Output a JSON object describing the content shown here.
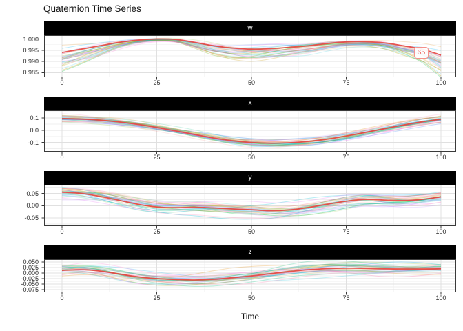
{
  "title": "Quaternion Time Series",
  "colors": {
    "highlight": "#e8453f",
    "annotation_border": "#f4918b",
    "annotation_text": "#ec5a52",
    "strip_bg": "#000000",
    "strip_text": "#ffffff",
    "grid_major": "#e0e0e0",
    "grid_minor": "#efefef",
    "panel_border": "#3a3a3a",
    "palette": [
      "#F8766D",
      "#E58700",
      "#C99800",
      "#A3A500",
      "#6BB100",
      "#00BA38",
      "#00BF7D",
      "#00C0AF",
      "#00BCD8",
      "#00B0F6",
      "#619CFF",
      "#B983FF",
      "#E76BF3",
      "#FD61D1",
      "#FF67A4"
    ]
  },
  "chart_data": {
    "type": "line",
    "title": "Quaternion Time Series",
    "xlabel": "Time",
    "legend": "none",
    "grid": true,
    "facets": [
      "w",
      "x",
      "y",
      "z"
    ],
    "highlight_series": "65",
    "n_background_series": 30,
    "background_alpha": 0.2,
    "x": [
      0,
      5,
      10,
      15,
      20,
      25,
      30,
      35,
      40,
      45,
      50,
      55,
      60,
      65,
      70,
      75,
      80,
      85,
      90,
      95,
      100
    ],
    "x_ticks": [
      0,
      25,
      50,
      75,
      100
    ],
    "x_tick_labels": [
      "0",
      "25",
      "50",
      "75",
      "100"
    ],
    "xlim": [
      -4.7,
      104
    ],
    "panels": [
      {
        "label": "w",
        "ylim": [
          0.983,
          1.0017
        ],
        "yticks": [
          1.0,
          0.995,
          0.99,
          0.985
        ],
        "ytick_labels": [
          "1.000",
          "0.995",
          "0.990",
          "0.985"
        ],
        "mean": [
          0.994,
          0.9955,
          0.997,
          0.9985,
          0.9995,
          1.0,
          0.9998,
          0.9985,
          0.997,
          0.996,
          0.9955,
          0.9957,
          0.9963,
          0.997,
          0.998,
          0.9987,
          0.9988,
          0.9983,
          0.997,
          0.9955,
          0.9928
        ],
        "spread": 0.0042,
        "bias": -0.55,
        "converge_at_max": true,
        "annotation": {
          "text": "65",
          "t": 95,
          "value": 0.9952
        }
      },
      {
        "label": "x",
        "ylim": [
          -0.175,
          0.162
        ],
        "yticks": [
          0.1,
          0.0,
          -0.1
        ],
        "ytick_labels": [
          "0.1",
          "0.0",
          "-0.1"
        ],
        "mean": [
          0.095,
          0.091,
          0.082,
          0.067,
          0.047,
          0.022,
          -0.006,
          -0.035,
          -0.063,
          -0.086,
          -0.1,
          -0.106,
          -0.102,
          -0.091,
          -0.072,
          -0.047,
          -0.018,
          0.012,
          0.042,
          0.068,
          0.09
        ],
        "spread": 0.026,
        "bias": 0
      },
      {
        "label": "y",
        "ylim": [
          -0.083,
          0.085
        ],
        "yticks": [
          0.05,
          0.0,
          -0.05
        ],
        "ytick_labels": [
          "0.05",
          "0.00",
          "-0.05"
        ],
        "mean": [
          0.055,
          0.05,
          0.038,
          0.022,
          0.006,
          -0.005,
          -0.008,
          -0.006,
          -0.009,
          -0.013,
          -0.016,
          -0.02,
          -0.017,
          -0.007,
          0.006,
          0.018,
          0.026,
          0.023,
          0.021,
          0.026,
          0.036
        ],
        "spread": 0.024,
        "bias": 0
      },
      {
        "label": "z",
        "ylim": [
          -0.087,
          0.062
        ],
        "yticks": [
          0.05,
          0.025,
          0.0,
          -0.025,
          -0.05,
          -0.075
        ],
        "ytick_labels": [
          "0.050",
          "0.025",
          "0.000",
          "-0.025",
          "-0.050",
          "-0.075"
        ],
        "mean": [
          0.012,
          0.015,
          0.009,
          -0.004,
          -0.017,
          -0.025,
          -0.029,
          -0.031,
          -0.028,
          -0.021,
          -0.013,
          -0.003,
          0.007,
          0.015,
          0.02,
          0.022,
          0.021,
          0.019,
          0.018,
          0.018,
          0.019
        ],
        "spread": 0.021,
        "bias": 0
      }
    ]
  }
}
